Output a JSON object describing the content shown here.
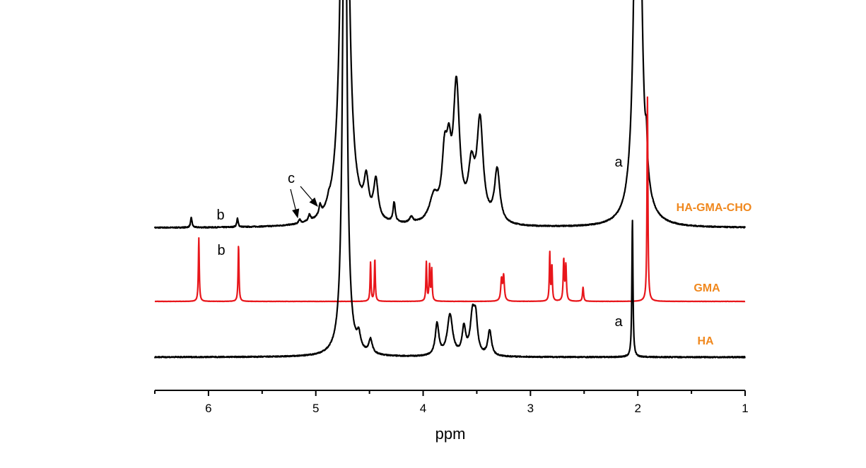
{
  "chart_data": {
    "type": "line",
    "title": "",
    "xlabel": "ppm",
    "ylabel": "",
    "xlim": [
      6.5,
      1.0
    ],
    "x_reversed": true,
    "xticks": [
      "6",
      "5",
      "4",
      "3",
      "2",
      "1"
    ],
    "xtick_values": [
      6,
      5,
      4,
      3,
      2,
      1
    ],
    "ylim_au": [
      0,
      560
    ],
    "grid": false,
    "label_color": "#F0881E",
    "series": [
      {
        "name": "HA-GMA-CHO",
        "color": "#000000",
        "offset_au": 233,
        "peaks_ppm_height_hwhm": [
          [
            6.16,
            14,
            0.008
          ],
          [
            5.73,
            12,
            0.008
          ],
          [
            5.15,
            6,
            0.01
          ],
          [
            5.06,
            9,
            0.012
          ],
          [
            4.96,
            14,
            0.012
          ],
          [
            4.88,
            7,
            0.012
          ],
          [
            4.73,
            900,
            0.035
          ],
          [
            4.53,
            50,
            0.025
          ],
          [
            4.44,
            55,
            0.025
          ],
          [
            4.27,
            28,
            0.012
          ],
          [
            4.11,
            8,
            0.02
          ],
          [
            3.9,
            35,
            0.05
          ],
          [
            3.8,
            85,
            0.03
          ],
          [
            3.76,
            70,
            0.025
          ],
          [
            3.69,
            190,
            0.035
          ],
          [
            3.55,
            70,
            0.035
          ],
          [
            3.47,
            140,
            0.035
          ],
          [
            3.31,
            75,
            0.03
          ],
          [
            2.0,
            900,
            0.03
          ],
          [
            1.92,
            45,
            0.01
          ]
        ]
      },
      {
        "name": "GMA",
        "color": "#E8161B",
        "offset_au": 129,
        "peaks_ppm_height_hwhm": [
          [
            6.09,
            90,
            0.005
          ],
          [
            5.72,
            80,
            0.005
          ],
          [
            4.49,
            55,
            0.005
          ],
          [
            4.45,
            60,
            0.005
          ],
          [
            3.97,
            55,
            0.005
          ],
          [
            3.94,
            50,
            0.005
          ],
          [
            3.92,
            45,
            0.005
          ],
          [
            3.27,
            30,
            0.008
          ],
          [
            3.25,
            35,
            0.008
          ],
          [
            2.82,
            68,
            0.005
          ],
          [
            2.8,
            50,
            0.005
          ],
          [
            2.69,
            58,
            0.006
          ],
          [
            2.67,
            50,
            0.006
          ],
          [
            2.51,
            20,
            0.006
          ],
          [
            1.91,
            290,
            0.005
          ]
        ]
      },
      {
        "name": "HA",
        "color": "#000000",
        "offset_au": 50,
        "peaks_ppm_height_hwhm": [
          [
            4.73,
            900,
            0.02
          ],
          [
            4.6,
            20,
            0.02
          ],
          [
            4.49,
            20,
            0.02
          ],
          [
            3.87,
            45,
            0.02
          ],
          [
            3.75,
            58,
            0.03
          ],
          [
            3.62,
            38,
            0.02
          ],
          [
            3.54,
            55,
            0.025
          ],
          [
            3.51,
            45,
            0.02
          ],
          [
            3.38,
            36,
            0.02
          ],
          [
            2.05,
            195,
            0.006
          ]
        ]
      }
    ],
    "annotations": [
      {
        "text": "a",
        "series": "HA-GMA-CHO",
        "ppm": 2.0
      },
      {
        "text": "b",
        "series": "HA-GMA-CHO",
        "ppm": 5.9
      },
      {
        "text": "c",
        "series": "HA-GMA-CHO",
        "ppm": 5.05
      },
      {
        "text": "b",
        "series": "GMA",
        "ppm": 5.9
      },
      {
        "text": "a",
        "series": "HA",
        "ppm": 2.05
      }
    ]
  }
}
